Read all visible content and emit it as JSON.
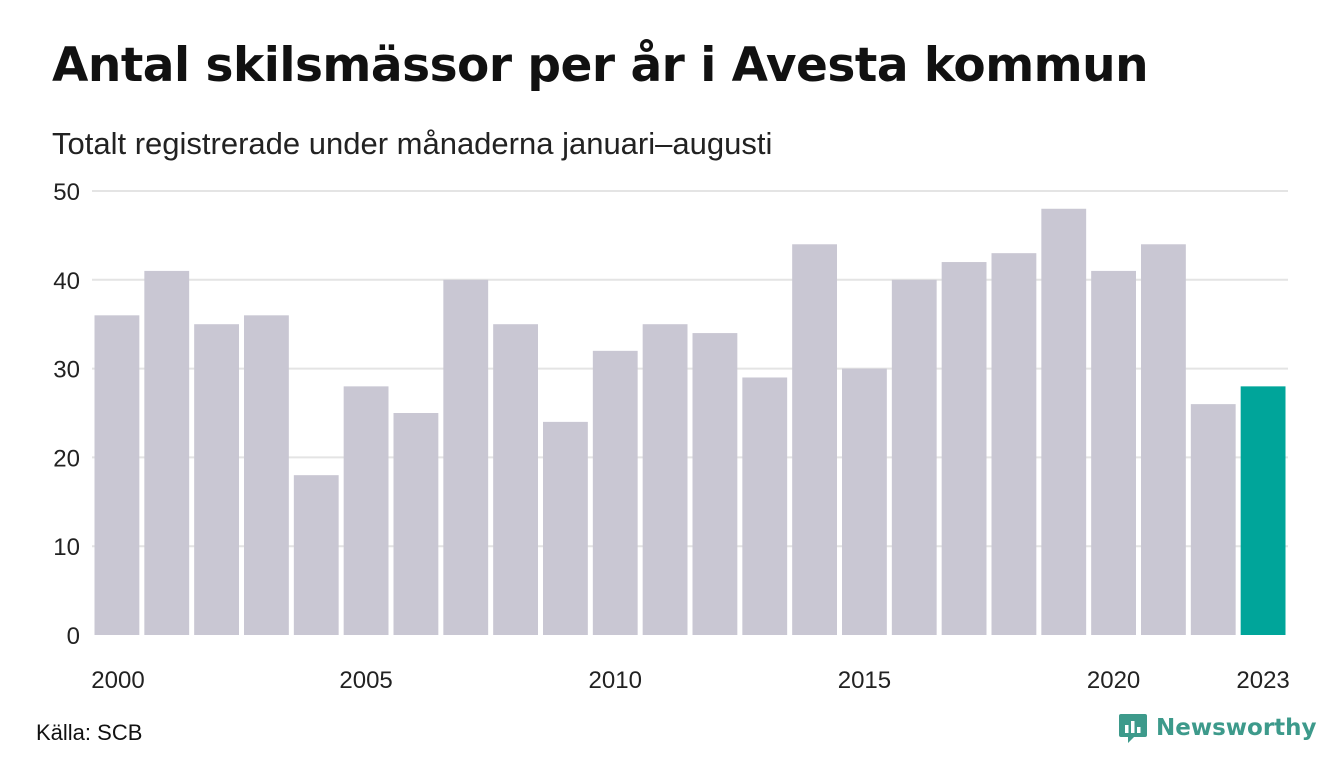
{
  "header": {
    "title": "Antal skilsmässor per år i Avesta kommun",
    "subtitle": "Totalt registrerade under månaderna januari–augusti"
  },
  "footer": {
    "source": "Källa: SCB",
    "brand": "Newsworthy"
  },
  "colors": {
    "bar": "#c9c7d3",
    "highlight": "#00a59a",
    "grid": "#e4e4e4",
    "brand": "#3d9a8b"
  },
  "icons": {
    "brand_logo": "bar-chart-speech-bubble-icon"
  },
  "chart_data": {
    "type": "bar",
    "categories": [
      "2000",
      "2001",
      "2002",
      "2003",
      "2004",
      "2005",
      "2006",
      "2007",
      "2008",
      "2009",
      "2010",
      "2011",
      "2012",
      "2013",
      "2014",
      "2015",
      "2016",
      "2017",
      "2018",
      "2019",
      "2020",
      "2021",
      "2022",
      "2023"
    ],
    "values": [
      36,
      41,
      35,
      36,
      18,
      28,
      25,
      40,
      35,
      24,
      32,
      35,
      34,
      29,
      44,
      30,
      40,
      42,
      43,
      48,
      41,
      44,
      26,
      28
    ],
    "highlight_category": "2023",
    "x_tick_labels": [
      "2000",
      "2005",
      "2010",
      "2015",
      "2020",
      "2023"
    ],
    "y_ticks": [
      0,
      10,
      20,
      30,
      40,
      50
    ],
    "ylim": [
      0,
      50
    ],
    "grid": true,
    "legend": "none",
    "title": "Antal skilsmässor per år i Avesta kommun",
    "subtitle": "Totalt registrerade under månaderna januari–augusti",
    "xlabel": "",
    "ylabel": ""
  }
}
